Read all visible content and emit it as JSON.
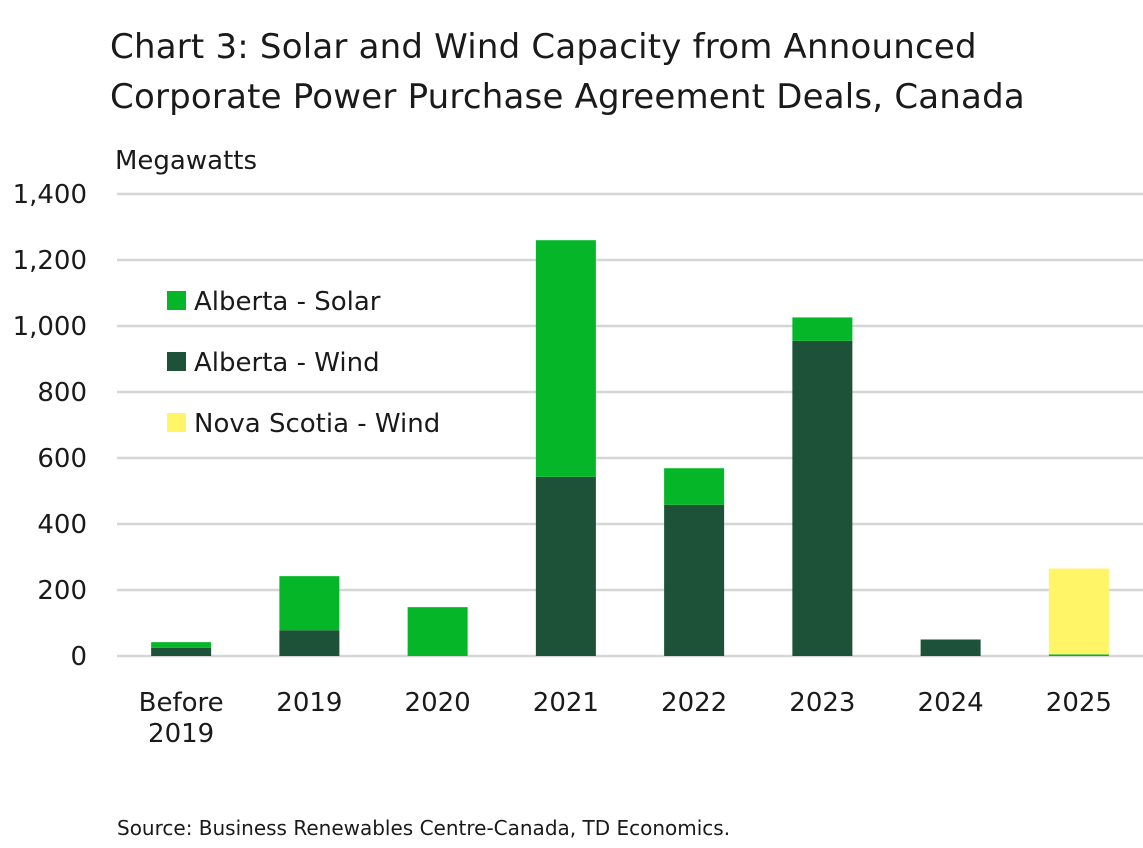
{
  "title_line1": "Chart 3: Solar and Wind Capacity from Announced",
  "title_line2": "Corporate Power Purchase Agreement Deals, Canada",
  "source": "Source: Business Renewables Centre-Canada,  TD Economics.",
  "chart_data": {
    "type": "bar",
    "stacked": true,
    "title": "Chart 3: Solar and Wind Capacity from Announced Corporate Power Purchase Agreement Deals, Canada",
    "ylabel": "Megawatts",
    "xlabel": "",
    "ylim": [
      0,
      1400
    ],
    "yticks": [
      0,
      200,
      400,
      600,
      800,
      1000,
      1200,
      1400
    ],
    "ytick_labels": [
      "0",
      "200",
      "400",
      "600",
      "800",
      "1,000",
      "1,200",
      "1,400"
    ],
    "categories": [
      [
        "Before",
        "2019"
      ],
      [
        "2019"
      ],
      [
        "2020"
      ],
      [
        "2021"
      ],
      [
        "2022"
      ],
      [
        "2023"
      ],
      [
        "2024"
      ],
      [
        "2025"
      ]
    ],
    "series": [
      {
        "name": "Alberta - Wind",
        "color": "#1d5238",
        "values": [
          25,
          78,
          0,
          543,
          458,
          955,
          50,
          0
        ]
      },
      {
        "name": "Alberta - Solar",
        "color": "#05b628",
        "values": [
          17,
          164,
          148,
          717,
          111,
          71,
          0,
          5
        ]
      },
      {
        "name": "Nova Scotia - Wind",
        "color": "#fff566",
        "values": [
          0,
          0,
          0,
          0,
          0,
          0,
          0,
          260
        ]
      }
    ],
    "legend_order": [
      "Alberta - Solar",
      "Alberta - Wind",
      "Nova Scotia - Wind"
    ],
    "legend_position": "upper-left inside",
    "grid": true,
    "gridline_color": "#d6d6d6"
  }
}
